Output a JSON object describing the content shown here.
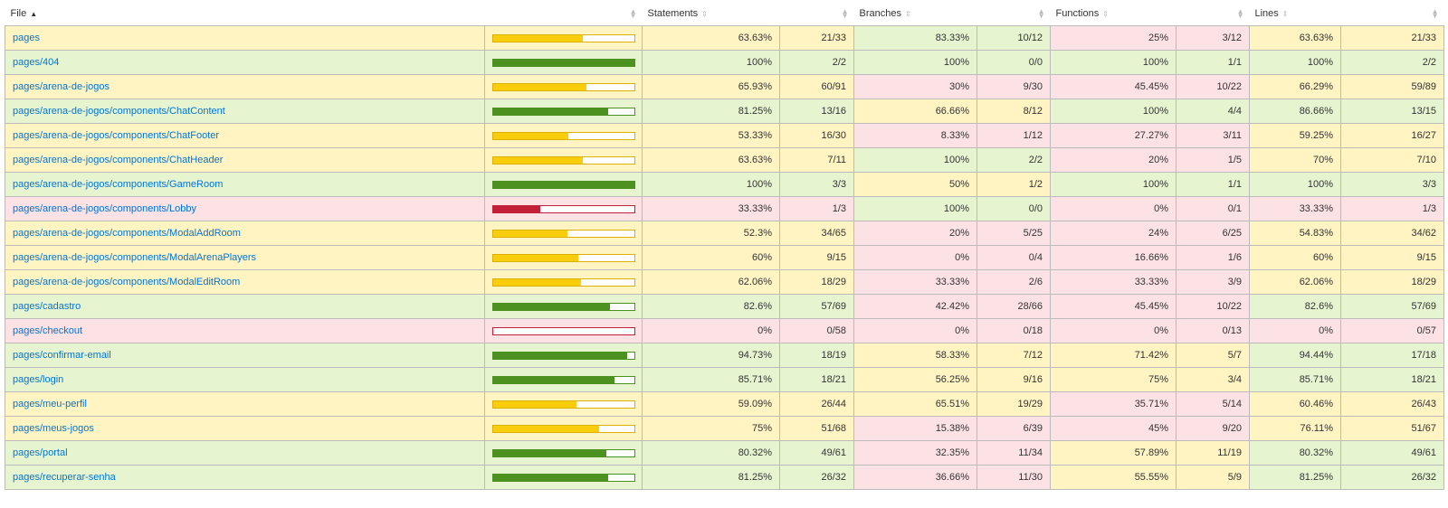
{
  "headers": {
    "file": "File",
    "statements": "Statements",
    "branches": "Branches",
    "functions": "Functions",
    "lines": "Lines"
  },
  "rows": [
    {
      "file": "pages",
      "pct": 0.6363,
      "stmt_pct": "63.63%",
      "stmt_frac": "21/33",
      "br_pct": "83.33%",
      "br_frac": "10/12",
      "fn_pct": "25%",
      "fn_frac": "3/12",
      "ln_pct": "63.63%",
      "ln_frac": "21/33",
      "c": [
        "medium",
        "high",
        "low",
        "medium"
      ]
    },
    {
      "file": "pages/404",
      "pct": 1.0,
      "stmt_pct": "100%",
      "stmt_frac": "2/2",
      "br_pct": "100%",
      "br_frac": "0/0",
      "fn_pct": "100%",
      "fn_frac": "1/1",
      "ln_pct": "100%",
      "ln_frac": "2/2",
      "c": [
        "high",
        "high",
        "high",
        "high"
      ]
    },
    {
      "file": "pages/arena-de-jogos",
      "pct": 0.6593,
      "stmt_pct": "65.93%",
      "stmt_frac": "60/91",
      "br_pct": "30%",
      "br_frac": "9/30",
      "fn_pct": "45.45%",
      "fn_frac": "10/22",
      "ln_pct": "66.29%",
      "ln_frac": "59/89",
      "c": [
        "medium",
        "low",
        "low",
        "medium"
      ]
    },
    {
      "file": "pages/arena-de-jogos/components/ChatContent",
      "pct": 0.8125,
      "stmt_pct": "81.25%",
      "stmt_frac": "13/16",
      "br_pct": "66.66%",
      "br_frac": "8/12",
      "fn_pct": "100%",
      "fn_frac": "4/4",
      "ln_pct": "86.66%",
      "ln_frac": "13/15",
      "c": [
        "high",
        "medium",
        "high",
        "high"
      ]
    },
    {
      "file": "pages/arena-de-jogos/components/ChatFooter",
      "pct": 0.5333,
      "stmt_pct": "53.33%",
      "stmt_frac": "16/30",
      "br_pct": "8.33%",
      "br_frac": "1/12",
      "fn_pct": "27.27%",
      "fn_frac": "3/11",
      "ln_pct": "59.25%",
      "ln_frac": "16/27",
      "c": [
        "medium",
        "low",
        "low",
        "medium"
      ]
    },
    {
      "file": "pages/arena-de-jogos/components/ChatHeader",
      "pct": 0.6363,
      "stmt_pct": "63.63%",
      "stmt_frac": "7/11",
      "br_pct": "100%",
      "br_frac": "2/2",
      "fn_pct": "20%",
      "fn_frac": "1/5",
      "ln_pct": "70%",
      "ln_frac": "7/10",
      "c": [
        "medium",
        "high",
        "low",
        "medium"
      ]
    },
    {
      "file": "pages/arena-de-jogos/components/GameRoom",
      "pct": 1.0,
      "stmt_pct": "100%",
      "stmt_frac": "3/3",
      "br_pct": "50%",
      "br_frac": "1/2",
      "fn_pct": "100%",
      "fn_frac": "1/1",
      "ln_pct": "100%",
      "ln_frac": "3/3",
      "c": [
        "high",
        "medium",
        "high",
        "high"
      ]
    },
    {
      "file": "pages/arena-de-jogos/components/Lobby",
      "pct": 0.3333,
      "stmt_pct": "33.33%",
      "stmt_frac": "1/3",
      "br_pct": "100%",
      "br_frac": "0/0",
      "fn_pct": "0%",
      "fn_frac": "0/1",
      "ln_pct": "33.33%",
      "ln_frac": "1/3",
      "c": [
        "low",
        "high",
        "low",
        "low"
      ]
    },
    {
      "file": "pages/arena-de-jogos/components/ModalAddRoom",
      "pct": 0.523,
      "stmt_pct": "52.3%",
      "stmt_frac": "34/65",
      "br_pct": "20%",
      "br_frac": "5/25",
      "fn_pct": "24%",
      "fn_frac": "6/25",
      "ln_pct": "54.83%",
      "ln_frac": "34/62",
      "c": [
        "medium",
        "low",
        "low",
        "medium"
      ]
    },
    {
      "file": "pages/arena-de-jogos/components/ModalArenaPlayers",
      "pct": 0.6,
      "stmt_pct": "60%",
      "stmt_frac": "9/15",
      "br_pct": "0%",
      "br_frac": "0/4",
      "fn_pct": "16.66%",
      "fn_frac": "1/6",
      "ln_pct": "60%",
      "ln_frac": "9/15",
      "c": [
        "medium",
        "low",
        "low",
        "medium"
      ]
    },
    {
      "file": "pages/arena-de-jogos/components/ModalEditRoom",
      "pct": 0.6206,
      "stmt_pct": "62.06%",
      "stmt_frac": "18/29",
      "br_pct": "33.33%",
      "br_frac": "2/6",
      "fn_pct": "33.33%",
      "fn_frac": "3/9",
      "ln_pct": "62.06%",
      "ln_frac": "18/29",
      "c": [
        "medium",
        "low",
        "low",
        "medium"
      ]
    },
    {
      "file": "pages/cadastro",
      "pct": 0.826,
      "stmt_pct": "82.6%",
      "stmt_frac": "57/69",
      "br_pct": "42.42%",
      "br_frac": "28/66",
      "fn_pct": "45.45%",
      "fn_frac": "10/22",
      "ln_pct": "82.6%",
      "ln_frac": "57/69",
      "c": [
        "high",
        "low",
        "low",
        "high"
      ]
    },
    {
      "file": "pages/checkout",
      "pct": 0.0,
      "stmt_pct": "0%",
      "stmt_frac": "0/58",
      "br_pct": "0%",
      "br_frac": "0/18",
      "fn_pct": "0%",
      "fn_frac": "0/13",
      "ln_pct": "0%",
      "ln_frac": "0/57",
      "c": [
        "low",
        "low",
        "low",
        "low"
      ]
    },
    {
      "file": "pages/confirmar-email",
      "pct": 0.9473,
      "stmt_pct": "94.73%",
      "stmt_frac": "18/19",
      "br_pct": "58.33%",
      "br_frac": "7/12",
      "fn_pct": "71.42%",
      "fn_frac": "5/7",
      "ln_pct": "94.44%",
      "ln_frac": "17/18",
      "c": [
        "high",
        "medium",
        "medium",
        "high"
      ]
    },
    {
      "file": "pages/login",
      "pct": 0.8571,
      "stmt_pct": "85.71%",
      "stmt_frac": "18/21",
      "br_pct": "56.25%",
      "br_frac": "9/16",
      "fn_pct": "75%",
      "fn_frac": "3/4",
      "ln_pct": "85.71%",
      "ln_frac": "18/21",
      "c": [
        "high",
        "medium",
        "medium",
        "high"
      ]
    },
    {
      "file": "pages/meu-perfil",
      "pct": 0.5909,
      "stmt_pct": "59.09%",
      "stmt_frac": "26/44",
      "br_pct": "65.51%",
      "br_frac": "19/29",
      "fn_pct": "35.71%",
      "fn_frac": "5/14",
      "ln_pct": "60.46%",
      "ln_frac": "26/43",
      "c": [
        "medium",
        "medium",
        "low",
        "medium"
      ]
    },
    {
      "file": "pages/meus-jogos",
      "pct": 0.75,
      "stmt_pct": "75%",
      "stmt_frac": "51/68",
      "br_pct": "15.38%",
      "br_frac": "6/39",
      "fn_pct": "45%",
      "fn_frac": "9/20",
      "ln_pct": "76.11%",
      "ln_frac": "51/67",
      "c": [
        "medium",
        "low",
        "low",
        "medium"
      ]
    },
    {
      "file": "pages/portal",
      "pct": 0.8032,
      "stmt_pct": "80.32%",
      "stmt_frac": "49/61",
      "br_pct": "32.35%",
      "br_frac": "11/34",
      "fn_pct": "57.89%",
      "fn_frac": "11/19",
      "ln_pct": "80.32%",
      "ln_frac": "49/61",
      "c": [
        "high",
        "low",
        "medium",
        "high"
      ]
    },
    {
      "file": "pages/recuperar-senha",
      "pct": 0.8125,
      "stmt_pct": "81.25%",
      "stmt_frac": "26/32",
      "br_pct": "36.66%",
      "br_frac": "11/30",
      "fn_pct": "55.55%",
      "fn_frac": "5/9",
      "ln_pct": "81.25%",
      "ln_frac": "26/32",
      "c": [
        "high",
        "low",
        "medium",
        "high"
      ]
    }
  ]
}
